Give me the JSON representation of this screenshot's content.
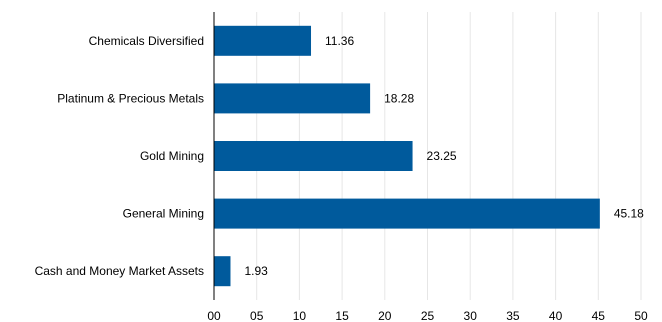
{
  "chart_data": {
    "type": "bar",
    "orientation": "horizontal",
    "categories": [
      "Chemicals Diversified",
      "Platinum & Precious Metals",
      "Gold Mining",
      "General Mining",
      "Cash and Money Market Assets"
    ],
    "values": [
      11.36,
      18.28,
      23.25,
      45.18,
      1.93
    ],
    "value_labels": [
      "11.36",
      "18.28",
      "23.25",
      "45.18",
      "1.93"
    ],
    "xlim": [
      0,
      50
    ],
    "x_ticks": [
      0,
      5,
      10,
      15,
      20,
      25,
      30,
      35,
      40,
      45,
      50
    ],
    "x_tick_labels": [
      "00",
      "05",
      "10",
      "15",
      "20",
      "25",
      "30",
      "35",
      "40",
      "45",
      "50"
    ],
    "title": "",
    "xlabel": "",
    "ylabel": "",
    "grid": "vertical",
    "legend": "none",
    "bar_color": "#005a9c",
    "grid_color": "#e6e6e6",
    "axis_color": "#000000"
  }
}
